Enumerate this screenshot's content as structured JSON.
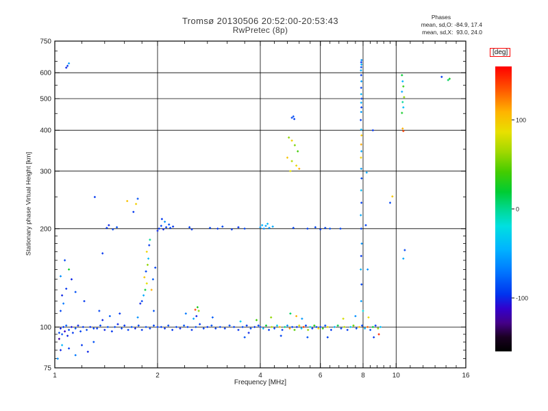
{
  "chart_data": {
    "type": "scatter",
    "title": "Tromsø 20130506 20:52:00-20:53:43",
    "subtitle": "RwPretec (8p)",
    "xlabel": "Frequency [MHz]",
    "ylabel": "Stationary phase Virtual Height [km]",
    "x_scale": "log",
    "y_scale": "log",
    "xlim": [
      1,
      16
    ],
    "ylim": [
      75,
      750
    ],
    "x_ticks": [
      1,
      2,
      4,
      6,
      8,
      10,
      16
    ],
    "x_minor_ticks": [
      1.2,
      1.4,
      1.6,
      1.8,
      2.4,
      2.8,
      3.2,
      3.6,
      4.4,
      4.8,
      5.2,
      5.6,
      6.4,
      6.8,
      7.2,
      7.6,
      8.4,
      8.8,
      9.2,
      9.6,
      11,
      12,
      13,
      14,
      15
    ],
    "y_ticks": [
      75,
      100,
      200,
      300,
      400,
      500,
      600,
      750
    ],
    "y_minor_ticks": [
      80,
      85,
      90,
      95,
      110,
      120,
      130,
      140,
      150,
      160,
      170,
      180,
      190,
      250,
      350,
      450,
      550,
      650,
      700
    ],
    "x_gridlines": [
      2,
      4,
      6,
      8,
      10
    ],
    "y_gridlines": [
      100,
      200,
      300,
      400,
      500,
      600
    ],
    "annotations": {
      "title": "Phases",
      "line_o": "mean, sd,O: -84.9, 17.4",
      "line_x": "mean, sd,X:  93.0, 24.0"
    },
    "colorbar": {
      "label": "[deg]",
      "ticks": [
        100,
        0,
        -100
      ],
      "range": [
        -160,
        160
      ],
      "label_box_color": "#ff0000"
    },
    "colormap": [
      [
        0.0,
        "#000000"
      ],
      [
        0.05,
        "#1a0022"
      ],
      [
        0.1,
        "#440088"
      ],
      [
        0.15,
        "#3300cc"
      ],
      [
        0.2,
        "#0033ee"
      ],
      [
        0.28,
        "#0077ff"
      ],
      [
        0.36,
        "#00b4ff"
      ],
      [
        0.44,
        "#00e0e0"
      ],
      [
        0.5,
        "#00d890"
      ],
      [
        0.56,
        "#00cc33"
      ],
      [
        0.63,
        "#44cc00"
      ],
      [
        0.7,
        "#a0d800"
      ],
      [
        0.77,
        "#e8e000"
      ],
      [
        0.84,
        "#ffb400"
      ],
      [
        0.92,
        "#ff5500"
      ],
      [
        1.0,
        "#ff0000"
      ]
    ],
    "points": [
      [
        1.03,
        96,
        -90
      ],
      [
        1.04,
        99,
        -102
      ],
      [
        1.05,
        95,
        -85
      ],
      [
        1.06,
        100,
        -95
      ],
      [
        1.07,
        97,
        -112
      ],
      [
        1.08,
        101,
        -80
      ],
      [
        1.09,
        94,
        -100
      ],
      [
        1.1,
        98,
        -90
      ],
      [
        1.12,
        100,
        -105
      ],
      [
        1.13,
        96,
        -95
      ],
      [
        1.15,
        99,
        -85
      ],
      [
        1.17,
        101,
        -100
      ],
      [
        1.19,
        97,
        -90
      ],
      [
        1.21,
        100,
        -96
      ],
      [
        1.24,
        98,
        -88
      ],
      [
        1.27,
        100,
        -98
      ],
      [
        1.3,
        99,
        -92
      ],
      [
        1.02,
        80,
        -60
      ],
      [
        1.04,
        85,
        -100
      ],
      [
        1.05,
        88,
        -45
      ],
      [
        1.04,
        112,
        -90
      ],
      [
        1.06,
        118,
        -70
      ],
      [
        1.05,
        125,
        -100
      ],
      [
        1.08,
        131,
        -95
      ],
      [
        1.04,
        143,
        -60
      ],
      [
        1.1,
        150,
        25
      ],
      [
        1.07,
        160,
        -90
      ],
      [
        1.12,
        140,
        -100
      ],
      [
        1.03,
        92,
        -120
      ],
      [
        1.15,
        128,
        -85
      ],
      [
        1.22,
        120,
        -95
      ],
      [
        1.35,
        112,
        -90
      ],
      [
        1.1,
        86,
        -92
      ],
      [
        1.15,
        82,
        -70
      ],
      [
        1.2,
        88,
        -95
      ],
      [
        1.3,
        90,
        -85
      ],
      [
        1.25,
        84,
        -100
      ],
      [
        1.09,
        630,
        -95
      ],
      [
        1.1,
        641,
        -55
      ],
      [
        1.08,
        622,
        -100
      ],
      [
        1.33,
        99,
        -95
      ],
      [
        1.36,
        101,
        -90
      ],
      [
        1.4,
        98,
        -100
      ],
      [
        1.43,
        100,
        -85
      ],
      [
        1.47,
        97,
        -95
      ],
      [
        1.5,
        100,
        -90
      ],
      [
        1.53,
        102,
        -100
      ],
      [
        1.57,
        99,
        -88
      ],
      [
        1.6,
        101,
        -96
      ],
      [
        1.64,
        98,
        -92
      ],
      [
        1.68,
        100,
        -85
      ],
      [
        1.72,
        99,
        -100
      ],
      [
        1.76,
        101,
        -90
      ],
      [
        1.8,
        98,
        -95
      ],
      [
        1.85,
        100,
        -87
      ],
      [
        1.9,
        99,
        -93
      ],
      [
        1.95,
        101,
        -90
      ],
      [
        2.0,
        100,
        -95
      ],
      [
        1.45,
        108,
        -80
      ],
      [
        1.55,
        110,
        -95
      ],
      [
        1.75,
        107,
        -60
      ],
      [
        1.95,
        112,
        -85
      ],
      [
        1.38,
        105,
        -100
      ],
      [
        1.8,
        120,
        -90
      ],
      [
        1.82,
        125,
        -50
      ],
      [
        1.84,
        130,
        20
      ],
      [
        1.86,
        136,
        85
      ],
      [
        1.83,
        142,
        100
      ],
      [
        1.85,
        148,
        -90
      ],
      [
        1.87,
        155,
        60
      ],
      [
        1.88,
        162,
        -40
      ],
      [
        1.86,
        170,
        92
      ],
      [
        1.89,
        178,
        -95
      ],
      [
        1.9,
        185,
        0
      ],
      [
        1.78,
        118,
        -100
      ],
      [
        1.92,
        130,
        110
      ],
      [
        1.94,
        140,
        -80
      ],
      [
        1.73,
        238,
        95
      ],
      [
        1.75,
        247,
        -85
      ],
      [
        1.7,
        225,
        -95
      ],
      [
        1.63,
        243,
        102
      ],
      [
        1.31,
        250,
        -95
      ],
      [
        1.38,
        168,
        -95
      ],
      [
        1.97,
        152,
        -90
      ],
      [
        1.42,
        201,
        -95
      ],
      [
        1.48,
        199,
        -90
      ],
      [
        1.44,
        205,
        -100
      ],
      [
        1.52,
        202,
        -85
      ],
      [
        2.02,
        200,
        -95
      ],
      [
        2.05,
        204,
        -88
      ],
      [
        2.08,
        199,
        -100
      ],
      [
        2.12,
        202,
        -92
      ],
      [
        2.16,
        206,
        -85
      ],
      [
        2.1,
        210,
        -60
      ],
      [
        2.06,
        214,
        -95
      ],
      [
        2.18,
        201,
        -90
      ],
      [
        2.0,
        197,
        -100
      ],
      [
        2.22,
        203,
        -94
      ],
      [
        2.48,
        202,
        -92
      ],
      [
        2.52,
        199,
        -96
      ],
      [
        2.85,
        201,
        -90
      ],
      [
        3.0,
        200,
        -95
      ],
      [
        3.1,
        203,
        -88
      ],
      [
        3.3,
        199,
        -93
      ],
      [
        3.45,
        202,
        -97
      ],
      [
        3.6,
        200,
        -90
      ],
      [
        4.0,
        202,
        -55
      ],
      [
        4.05,
        205,
        -45
      ],
      [
        4.1,
        200,
        -60
      ],
      [
        4.15,
        204,
        -50
      ],
      [
        4.2,
        207,
        -40
      ],
      [
        4.25,
        201,
        -58
      ],
      [
        4.35,
        203,
        -48
      ],
      [
        5.0,
        201,
        -90
      ],
      [
        5.5,
        200,
        -92
      ],
      [
        5.8,
        202,
        -88
      ],
      [
        6.0,
        199,
        -95
      ],
      [
        6.2,
        201,
        -90
      ],
      [
        6.4,
        200,
        -85
      ],
      [
        6.87,
        200,
        -90
      ],
      [
        2.05,
        100,
        -92
      ],
      [
        2.1,
        99,
        -97
      ],
      [
        2.15,
        101,
        -88
      ],
      [
        2.21,
        98,
        -95
      ],
      [
        2.27,
        100,
        -90
      ],
      [
        2.33,
        99,
        -100
      ],
      [
        2.39,
        101,
        -85
      ],
      [
        2.45,
        100,
        -93
      ],
      [
        2.52,
        98,
        -97
      ],
      [
        2.59,
        100,
        -89
      ],
      [
        2.66,
        102,
        -94
      ],
      [
        2.73,
        99,
        -91
      ],
      [
        2.8,
        100,
        -96
      ],
      [
        2.88,
        101,
        -86
      ],
      [
        2.96,
        99,
        -94
      ],
      [
        2.42,
        110,
        -70
      ],
      [
        2.6,
        108,
        -100
      ],
      [
        2.62,
        115,
        30
      ],
      [
        2.64,
        112,
        60
      ],
      [
        2.55,
        106,
        -50
      ],
      [
        2.9,
        107,
        -80
      ],
      [
        2.58,
        113,
        140
      ],
      [
        3.05,
        100,
        -90
      ],
      [
        3.15,
        99,
        -95
      ],
      [
        3.25,
        101,
        -87
      ],
      [
        3.35,
        100,
        -93
      ],
      [
        3.45,
        98,
        -97
      ],
      [
        3.55,
        100,
        -90
      ],
      [
        3.65,
        101,
        -94
      ],
      [
        3.75,
        99,
        -89
      ],
      [
        3.85,
        100,
        -96
      ],
      [
        3.95,
        101,
        -91
      ],
      [
        3.5,
        104,
        -30
      ],
      [
        3.7,
        96,
        -100
      ],
      [
        3.9,
        105,
        40
      ],
      [
        3.6,
        93,
        -85
      ],
      [
        4.0,
        100,
        -90
      ],
      [
        4.08,
        99,
        -50
      ],
      [
        4.16,
        101,
        20
      ],
      [
        4.24,
        98,
        -95
      ],
      [
        4.32,
        100,
        70
      ],
      [
        4.4,
        99,
        -88
      ],
      [
        4.48,
        101,
        -30
      ],
      [
        4.56,
        100,
        100
      ],
      [
        4.64,
        98,
        -92
      ],
      [
        4.72,
        100,
        0
      ],
      [
        4.8,
        101,
        -60
      ],
      [
        4.88,
        99,
        120
      ],
      [
        4.96,
        100,
        -90
      ],
      [
        5.04,
        98,
        45
      ],
      [
        5.12,
        100,
        -95
      ],
      [
        5.2,
        101,
        80
      ],
      [
        5.28,
        99,
        -40
      ],
      [
        5.36,
        100,
        140
      ],
      [
        5.44,
        101,
        -90
      ],
      [
        5.52,
        98,
        60
      ],
      [
        5.6,
        100,
        -20
      ],
      [
        5.68,
        99,
        -92
      ],
      [
        5.76,
        101,
        30
      ],
      [
        5.84,
        100,
        -88
      ],
      [
        5.92,
        99,
        95
      ],
      [
        4.3,
        107,
        60
      ],
      [
        4.6,
        94,
        -90
      ],
      [
        5.1,
        108,
        110
      ],
      [
        5.5,
        93,
        -85
      ],
      [
        4.9,
        110,
        10
      ],
      [
        5.3,
        106,
        -55
      ],
      [
        4.95,
        437,
        -90
      ],
      [
        5.0,
        441,
        -85
      ],
      [
        5.03,
        433,
        -92
      ],
      [
        4.85,
        380,
        60
      ],
      [
        4.95,
        372,
        95
      ],
      [
        5.05,
        360,
        55
      ],
      [
        4.8,
        330,
        100
      ],
      [
        4.95,
        322,
        70
      ],
      [
        5.1,
        312,
        90
      ],
      [
        5.2,
        305,
        112
      ],
      [
        5.15,
        345,
        40
      ],
      [
        4.9,
        300,
        85
      ],
      [
        6.0,
        100,
        -90
      ],
      [
        6.1,
        99,
        30
      ],
      [
        6.2,
        101,
        -85
      ],
      [
        6.3,
        100,
        90
      ],
      [
        6.45,
        98,
        -95
      ],
      [
        6.6,
        100,
        -45
      ],
      [
        6.75,
        101,
        15
      ],
      [
        6.9,
        99,
        -90
      ],
      [
        7.05,
        100,
        70
      ],
      [
        7.2,
        98,
        -92
      ],
      [
        7.35,
        100,
        -30
      ],
      [
        7.5,
        101,
        50
      ],
      [
        7.65,
        99,
        -88
      ],
      [
        7.8,
        100,
        105
      ],
      [
        7.95,
        101,
        -90
      ],
      [
        8.1,
        99,
        -50
      ],
      [
        8.25,
        100,
        130
      ],
      [
        8.4,
        98,
        -85
      ],
      [
        8.55,
        100,
        20
      ],
      [
        8.7,
        101,
        -90
      ],
      [
        8.85,
        99,
        60
      ],
      [
        9.0,
        100,
        -40
      ],
      [
        6.3,
        93,
        -90
      ],
      [
        7.0,
        106,
        80
      ],
      [
        7.6,
        108,
        -60
      ],
      [
        8.3,
        107,
        90
      ],
      [
        8.6,
        93,
        -95
      ],
      [
        8.0,
        112,
        -20
      ],
      [
        8.9,
        95,
        150
      ],
      [
        7.9,
        120,
        -55
      ],
      [
        7.92,
        135,
        -90
      ],
      [
        7.88,
        150,
        -45
      ],
      [
        7.9,
        165,
        -95
      ],
      [
        7.93,
        180,
        -60
      ],
      [
        7.9,
        200,
        -90
      ],
      [
        7.88,
        220,
        -50
      ],
      [
        7.91,
        240,
        -92
      ],
      [
        7.9,
        262,
        -40
      ],
      [
        7.92,
        285,
        -88
      ],
      [
        7.9,
        305,
        -55
      ],
      [
        7.89,
        330,
        95
      ],
      [
        7.91,
        345,
        -50
      ],
      [
        7.9,
        362,
        112
      ],
      [
        7.92,
        386,
        100
      ],
      [
        7.9,
        402,
        -45
      ],
      [
        7.88,
        430,
        -90
      ],
      [
        7.9,
        455,
        -55
      ],
      [
        7.91,
        470,
        -92
      ],
      [
        7.9,
        486,
        -50
      ],
      [
        7.92,
        500,
        -88
      ],
      [
        7.9,
        516,
        -45
      ],
      [
        7.9,
        540,
        -90
      ],
      [
        7.91,
        565,
        -55
      ],
      [
        7.9,
        590,
        -92
      ],
      [
        7.89,
        610,
        -50
      ],
      [
        7.9,
        624,
        -88
      ],
      [
        7.91,
        636,
        -45
      ],
      [
        7.9,
        646,
        -95
      ],
      [
        7.92,
        656,
        -60
      ],
      [
        8.2,
        297,
        -50
      ],
      [
        8.15,
        205,
        -90
      ],
      [
        8.25,
        150,
        -60
      ],
      [
        8.55,
        400,
        -95
      ],
      [
        9.75,
        251,
        100
      ],
      [
        9.6,
        240,
        -90
      ],
      [
        10.4,
        590,
        20
      ],
      [
        10.45,
        565,
        -45
      ],
      [
        10.5,
        545,
        35
      ],
      [
        10.4,
        525,
        -50
      ],
      [
        10.55,
        505,
        60
      ],
      [
        10.45,
        488,
        0
      ],
      [
        10.5,
        470,
        -40
      ],
      [
        10.4,
        452,
        25
      ],
      [
        10.5,
        398,
        140
      ],
      [
        10.45,
        405,
        110
      ],
      [
        10.6,
        172,
        -90
      ],
      [
        10.5,
        162,
        -50
      ],
      [
        13.6,
        583,
        -95
      ],
      [
        14.2,
        570,
        10
      ],
      [
        14.35,
        575,
        25
      ]
    ]
  }
}
